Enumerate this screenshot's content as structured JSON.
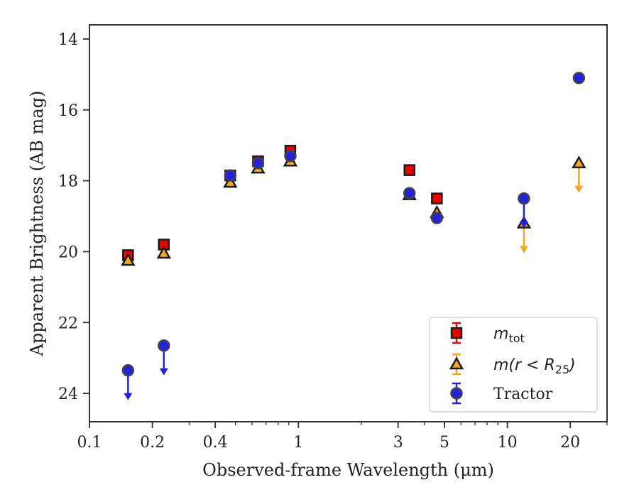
{
  "chart_data": {
    "type": "scatter",
    "xlabel": "Observed-frame Wavelength (μm)",
    "ylabel": "Apparent Brightness (AB mag)",
    "x_scale": "log",
    "xlim": [
      0.1,
      30
    ],
    "ylim": [
      24.8,
      13.6
    ],
    "y_inverted": true,
    "x_ticks": [
      {
        "value": 0.1,
        "label": "0.1"
      },
      {
        "value": 0.2,
        "label": "0.2"
      },
      {
        "value": 0.4,
        "label": "0.4"
      },
      {
        "value": 1,
        "label": "1"
      },
      {
        "value": 3,
        "label": "3"
      },
      {
        "value": 5,
        "label": "5"
      },
      {
        "value": 10,
        "label": "10"
      },
      {
        "value": 20,
        "label": "20"
      }
    ],
    "y_ticks": [
      {
        "value": 14,
        "label": "14"
      },
      {
        "value": 16,
        "label": "16"
      },
      {
        "value": 18,
        "label": "18"
      },
      {
        "value": 20,
        "label": "20"
      },
      {
        "value": 22,
        "label": "22"
      },
      {
        "value": 24,
        "label": "24"
      }
    ],
    "grid": false,
    "legend_position": "lower-right",
    "series": [
      {
        "name": "m_tot",
        "color": "#ee0000",
        "marker": "square",
        "points": [
          {
            "x": 0.153,
            "y": 20.1
          },
          {
            "x": 0.227,
            "y": 19.8
          },
          {
            "x": 0.472,
            "y": 17.85
          },
          {
            "x": 0.641,
            "y": 17.45
          },
          {
            "x": 0.915,
            "y": 17.15
          },
          {
            "x": 3.4,
            "y": 17.7
          },
          {
            "x": 4.6,
            "y": 18.5
          }
        ]
      },
      {
        "name": "m(r < R_25)",
        "color": "#f5a623",
        "marker": "triangle",
        "points": [
          {
            "x": 0.153,
            "y": 20.25
          },
          {
            "x": 0.227,
            "y": 20.05
          },
          {
            "x": 0.472,
            "y": 18.05
          },
          {
            "x": 0.641,
            "y": 17.65
          },
          {
            "x": 0.915,
            "y": 17.45
          },
          {
            "x": 3.4,
            "y": 18.4
          },
          {
            "x": 4.6,
            "y": 18.9
          },
          {
            "x": 12.0,
            "y": 19.2,
            "upper_limit": true
          },
          {
            "x": 22.0,
            "y": 17.5,
            "upper_limit": true
          }
        ]
      },
      {
        "name": "Tractor",
        "color": "#2222dd",
        "marker": "circle",
        "points": [
          {
            "x": 0.153,
            "y": 23.35,
            "upper_limit": true
          },
          {
            "x": 0.227,
            "y": 22.65,
            "upper_limit": true
          },
          {
            "x": 0.472,
            "y": 17.85
          },
          {
            "x": 0.641,
            "y": 17.5
          },
          {
            "x": 0.915,
            "y": 17.3
          },
          {
            "x": 3.4,
            "y": 18.35
          },
          {
            "x": 4.6,
            "y": 19.05
          },
          {
            "x": 12.0,
            "y": 18.5,
            "upper_limit": true
          },
          {
            "x": 22.0,
            "y": 15.1
          }
        ]
      }
    ]
  }
}
